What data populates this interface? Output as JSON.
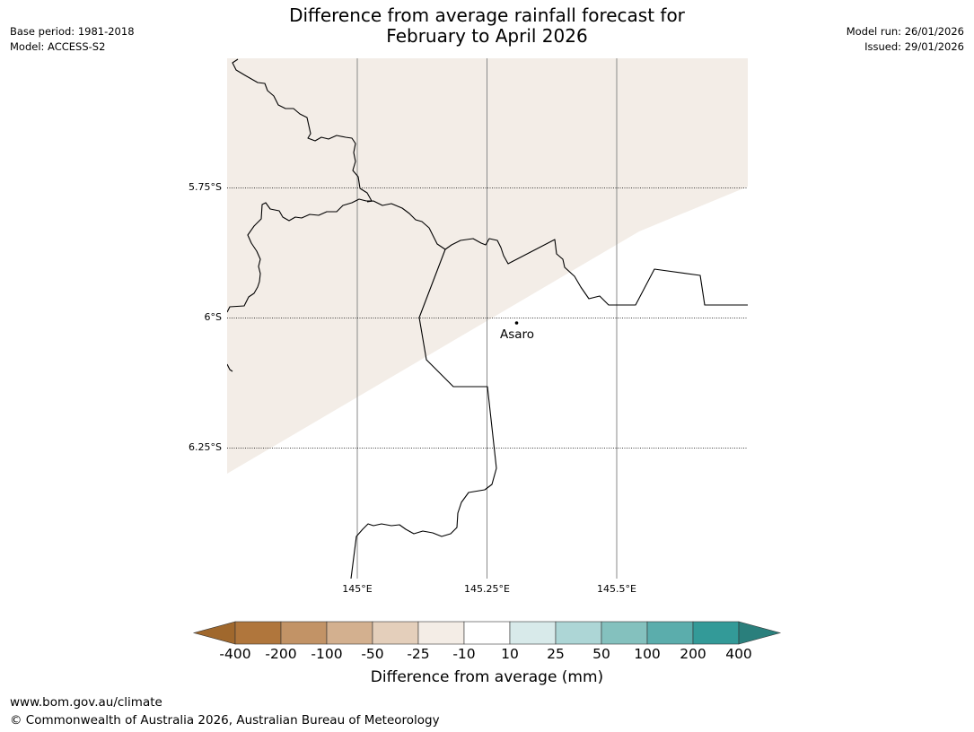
{
  "title": {
    "line1": "Difference from average rainfall forecast for",
    "line2": "February to April 2026"
  },
  "meta": {
    "base_period": "Base period: 1981-2018",
    "model": "Model: ACCESS-S2",
    "model_run": "Model run: 26/01/2026",
    "issued": "Issued: 29/01/2026"
  },
  "map": {
    "lat_labels": [
      "5.75°S",
      "6°S",
      "6.25°S"
    ],
    "lon_labels": [
      "145°E",
      "145.25°E",
      "145.5°E"
    ],
    "place": {
      "name": "Asaro"
    },
    "shaded_category": "-25 to -10"
  },
  "colorbar": {
    "ticks": [
      "-400",
      "-200",
      "-100",
      "-50",
      "-25",
      "-10",
      "10",
      "25",
      "50",
      "100",
      "200",
      "400"
    ],
    "colors": [
      "#a0682d",
      "#b0763c",
      "#c29366",
      "#d3b08f",
      "#e4cfbb",
      "#f4ede6",
      "#ffffff",
      "#d8eaea",
      "#add6d6",
      "#84c1be",
      "#5badac",
      "#339a98",
      "#2a7f7c"
    ],
    "label": "Difference from average (mm)"
  },
  "footer": {
    "url": "www.bom.gov.au/climate",
    "copyright": "© Commonwealth of Australia 2026, Australian Bureau of Meteorology"
  }
}
